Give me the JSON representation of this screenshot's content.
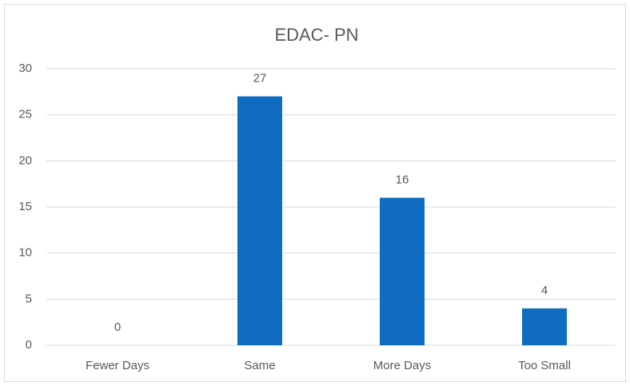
{
  "chart_data": {
    "type": "bar",
    "title": "EDAC- PN",
    "categories": [
      "Fewer Days",
      "Same",
      "More Days",
      "Too Small"
    ],
    "values": [
      0,
      27,
      16,
      4
    ],
    "color": "#0f6cc0",
    "ylim": [
      0,
      30
    ],
    "yticks": [
      0,
      5,
      10,
      15,
      20,
      25,
      30
    ],
    "grid": true,
    "data_labels": true
  }
}
